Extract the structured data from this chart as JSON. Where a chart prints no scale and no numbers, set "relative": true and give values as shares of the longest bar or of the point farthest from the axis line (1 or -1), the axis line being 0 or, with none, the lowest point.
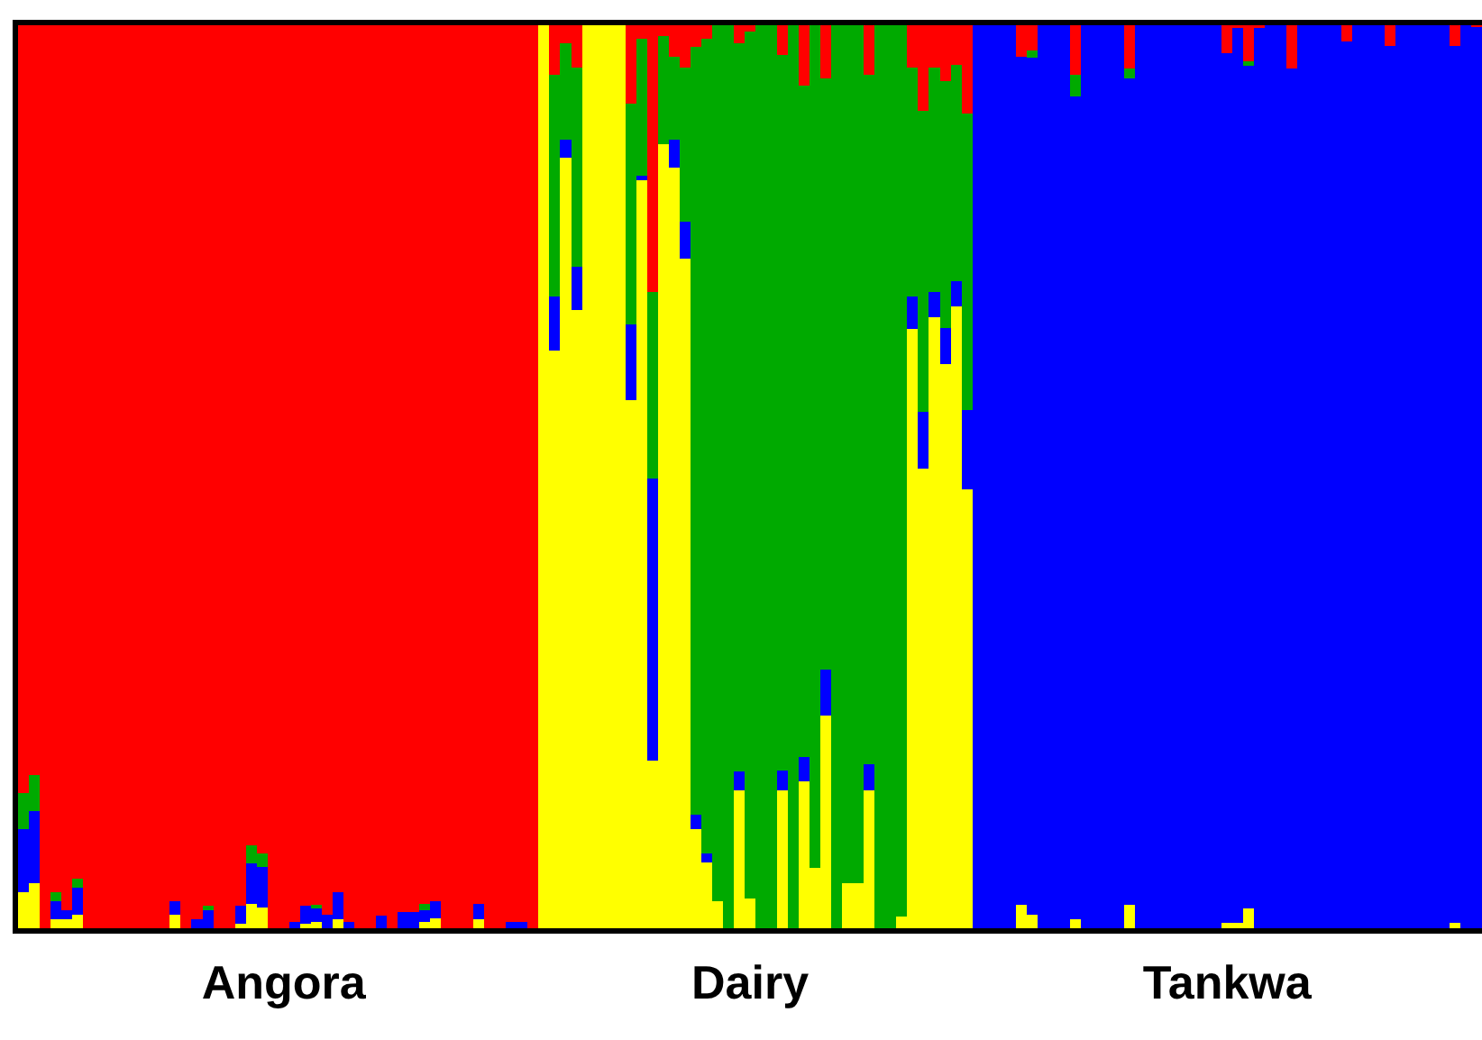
{
  "chart_data": {
    "type": "bar",
    "stacked": true,
    "relative": true,
    "categories": [
      null,
      null,
      null,
      null,
      null,
      null,
      null,
      null,
      null,
      null,
      null,
      null,
      null,
      null,
      null,
      null,
      null,
      null,
      null,
      null,
      null,
      null,
      null,
      null,
      "Angora",
      null,
      null,
      null,
      null,
      null,
      null,
      null,
      null,
      null,
      null,
      null,
      null,
      null,
      null,
      null,
      null,
      null,
      null,
      null,
      null,
      null,
      null,
      null,
      null,
      null,
      null,
      null,
      null,
      null,
      null,
      null,
      null,
      null,
      null,
      null,
      null,
      null,
      null,
      null,
      null,
      null,
      null,
      "Dairy",
      null,
      null,
      null,
      null,
      null,
      null,
      null,
      null,
      null,
      null,
      null,
      null,
      null,
      null,
      null,
      null,
      null,
      null,
      null,
      null,
      null,
      null,
      null,
      null,
      null,
      null,
      null,
      null,
      null,
      null,
      null,
      null,
      null,
      null,
      null,
      null,
      null,
      null,
      null,
      null,
      null,
      null,
      null,
      "Tankwa",
      null,
      null,
      null,
      null,
      null,
      null,
      null,
      null,
      null,
      null,
      null,
      null,
      null,
      null,
      null,
      null,
      null,
      null,
      null,
      null,
      null,
      null,
      null
    ],
    "series": [
      {
        "color": "#ffff00",
        "values": [
          0.04,
          0.05,
          0,
          0.01,
          0.01,
          0.015,
          0,
          0,
          0,
          0,
          0,
          0,
          0,
          0,
          0.015,
          0,
          0,
          0,
          0,
          0,
          0.005,
          0.027,
          0.023,
          0,
          0,
          0,
          0.005,
          0.007,
          0,
          0.01,
          0,
          0,
          0,
          0,
          0,
          0,
          0,
          0.007,
          0.011,
          0,
          0,
          0,
          0.01,
          0,
          0,
          0,
          0,
          0,
          1,
          0.64,
          0.853,
          0.685,
          1,
          1,
          1,
          1,
          0.585,
          0.828,
          0.186,
          0.868,
          0.842,
          0.742,
          0.11,
          0.073,
          0.03,
          0,
          0.153,
          0.033,
          0,
          0,
          0.153,
          0,
          0.163,
          0.067,
          0.236,
          0,
          0.05,
          0.05,
          0.153,
          0,
          0,
          0.013,
          0.664,
          0.509,
          0.677,
          0.625,
          0.689,
          0.486,
          0,
          0,
          0,
          0,
          0.026,
          0.015,
          0,
          0,
          0,
          0.01,
          0,
          0,
          0,
          0,
          0.026,
          0,
          0,
          0,
          0,
          0,
          0,
          0,
          0,
          0.006,
          0.006,
          0.022,
          0,
          0,
          0,
          0,
          0,
          0,
          0,
          0,
          0,
          0,
          0,
          0,
          0,
          0,
          0,
          0,
          0,
          0,
          0.006,
          0,
          0
        ]
      },
      {
        "color": "#0000ff",
        "values": [
          0.07,
          0.08,
          0,
          0.02,
          0.01,
          0.03,
          0,
          0,
          0,
          0,
          0,
          0,
          0,
          0,
          0.015,
          0,
          0.01,
          0.02,
          0,
          0,
          0.02,
          0.045,
          0.045,
          0,
          0,
          0.007,
          0.02,
          0.015,
          0.015,
          0.03,
          0.007,
          0,
          0,
          0.014,
          0,
          0.018,
          0.018,
          0.013,
          0.019,
          0,
          0,
          0,
          0.017,
          0,
          0,
          0.007,
          0.007,
          0,
          0,
          0.06,
          0.02,
          0.048,
          0,
          0,
          0,
          0,
          0.084,
          0.005,
          0.312,
          0,
          0.031,
          0.04,
          0.016,
          0.01,
          0,
          0,
          0.021,
          0,
          0,
          0,
          0.022,
          0,
          0.027,
          0,
          0.05,
          0,
          0,
          0,
          0.029,
          0,
          0,
          0,
          0.036,
          0.063,
          0.028,
          0.04,
          0.028,
          0.088,
          1,
          1,
          1,
          1,
          0.939,
          0.949,
          1,
          1,
          1,
          0.911,
          1,
          1,
          1,
          1,
          0.915,
          1,
          1,
          1,
          1,
          1,
          1,
          1,
          1,
          0.963,
          0.991,
          0.933,
          0.997,
          1,
          1,
          0.952,
          1,
          1,
          1,
          1,
          0.982,
          1,
          1,
          1,
          0.977,
          1,
          1,
          1,
          1,
          1,
          0.971,
          1,
          0.998
        ]
      },
      {
        "color": "#00aa00",
        "values": [
          0.04,
          0.04,
          0,
          0.01,
          0,
          0.01,
          0,
          0,
          0,
          0,
          0,
          0,
          0,
          0,
          0,
          0,
          0,
          0.005,
          0,
          0,
          0,
          0.02,
          0.015,
          0,
          0,
          0,
          0,
          0.004,
          0,
          0,
          0,
          0,
          0,
          0,
          0,
          0,
          0,
          0.007,
          0,
          0,
          0,
          0,
          0,
          0,
          0,
          0,
          0,
          0,
          0,
          0.245,
          0.107,
          0.22,
          0,
          0,
          0,
          0,
          0.244,
          0.152,
          0.207,
          0.12,
          0.092,
          0.171,
          0.85,
          0.902,
          0.97,
          1,
          0.806,
          0.96,
          1,
          1,
          0.792,
          1,
          0.743,
          0.933,
          0.655,
          1,
          0.95,
          0.95,
          0.763,
          1,
          1,
          0.987,
          0.253,
          0.333,
          0.248,
          0.273,
          0.239,
          0.328,
          0,
          0,
          0,
          0,
          0,
          0.008,
          0,
          0,
          0,
          0.024,
          0,
          0,
          0,
          0,
          0.011,
          0,
          0,
          0,
          0,
          0,
          0,
          0,
          0,
          0,
          0,
          0.005,
          0,
          0,
          0,
          0,
          0,
          0,
          0,
          0,
          0,
          0,
          0,
          0,
          0,
          0,
          0,
          0,
          0,
          0,
          0,
          0,
          0
        ]
      },
      {
        "color": "#ff0000",
        "values": [
          0.85,
          0.83,
          1,
          0.96,
          0.98,
          0.945,
          1,
          1,
          1,
          1,
          1,
          1,
          1,
          1,
          0.97,
          1,
          0.99,
          0.975,
          1,
          1,
          0.975,
          0.908,
          0.917,
          1,
          1,
          0.993,
          0.975,
          0.974,
          0.985,
          0.96,
          0.993,
          1,
          1,
          0.986,
          1,
          0.982,
          0.982,
          0.973,
          0.97,
          1,
          1,
          1,
          0.973,
          1,
          1,
          0.993,
          0.993,
          1,
          0,
          0.055,
          0.02,
          0.047,
          0,
          0,
          0,
          0,
          0.087,
          0.015,
          0.295,
          0.012,
          0.035,
          0.047,
          0.024,
          0.015,
          0,
          0,
          0.02,
          0.007,
          0,
          0,
          0.033,
          0,
          0.067,
          0,
          0.059,
          0,
          0,
          0,
          0.055,
          0,
          0,
          0,
          0.047,
          0.095,
          0.047,
          0.062,
          0.044,
          0.098,
          0,
          0,
          0,
          0,
          0.035,
          0.028,
          0,
          0,
          0,
          0.055,
          0,
          0,
          0,
          0,
          0.048,
          0,
          0,
          0,
          0,
          0,
          0,
          0,
          0,
          0.031,
          0.003,
          0.04,
          0.003,
          0,
          0,
          0.048,
          0,
          0,
          0,
          0,
          0.018,
          0,
          0,
          0,
          0.023,
          0,
          0,
          0,
          0,
          0,
          0.023,
          0,
          0.002
        ]
      }
    ]
  }
}
